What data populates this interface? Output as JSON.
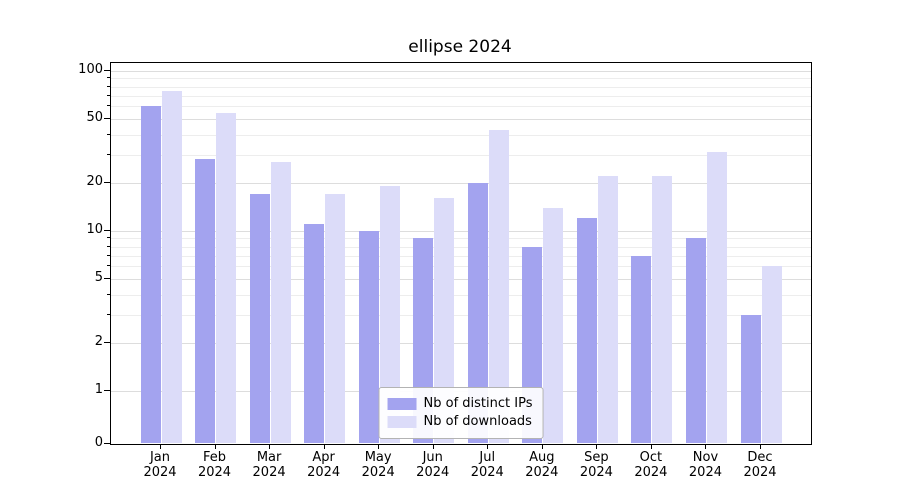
{
  "chart_data": {
    "type": "bar",
    "title": "ellipse 2024",
    "categories": [
      "Jan",
      "Feb",
      "Mar",
      "Apr",
      "May",
      "Jun",
      "Jul",
      "Aug",
      "Sep",
      "Oct",
      "Nov",
      "Dec"
    ],
    "category_sublabel": "2024",
    "series": [
      {
        "name": "Nb of distinct IPs",
        "color": "#a3a3ef",
        "values": [
          60,
          28,
          17,
          11,
          10,
          9,
          20,
          8,
          12,
          7,
          9,
          3
        ]
      },
      {
        "name": "Nb of downloads",
        "color": "#dcdcf9",
        "values": [
          75,
          55,
          27,
          17,
          19,
          16,
          43,
          14,
          22,
          22,
          31,
          6
        ]
      }
    ],
    "y_scale": "symlog",
    "y_ticks": [
      0,
      1,
      2,
      5,
      10,
      20,
      50,
      100
    ],
    "y_minor_ticks": [
      3,
      4,
      6,
      7,
      8,
      9,
      30,
      40,
      60,
      70,
      80,
      90
    ],
    "ylim": [
      0,
      112
    ],
    "grid": true,
    "legend_position": "lower center",
    "xlabel": "",
    "ylabel": "",
    "background_color": "#ffffff"
  }
}
